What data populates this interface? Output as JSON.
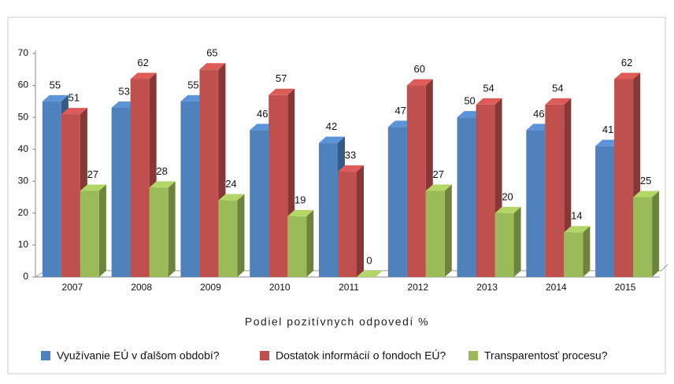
{
  "chart_data": {
    "type": "bar",
    "x_label": "Podiel pozitívnych odpovedí %",
    "categories": [
      "2007",
      "2008",
      "2009",
      "2010",
      "2011",
      "2012",
      "2013",
      "2014",
      "2015"
    ],
    "series": [
      {
        "name": "Využívanie EÚ v ďalšom období?",
        "color": "#4f81bd",
        "values": [
          55,
          53,
          55,
          46,
          42,
          47,
          50,
          46,
          41
        ]
      },
      {
        "name": "Dostatok informácií o fondoch EÚ?",
        "color": "#c0504d",
        "values": [
          51,
          62,
          65,
          57,
          33,
          60,
          54,
          54,
          62
        ]
      },
      {
        "name": "Transparentosť procesu?",
        "color": "#9bbb59",
        "values": [
          27,
          28,
          24,
          19,
          0,
          27,
          20,
          14,
          25
        ]
      }
    ],
    "ylim": [
      0,
      70
    ],
    "yticks": [
      0,
      10,
      20,
      30,
      40,
      50,
      60,
      70
    ],
    "grid": false,
    "legend": "bottom"
  }
}
